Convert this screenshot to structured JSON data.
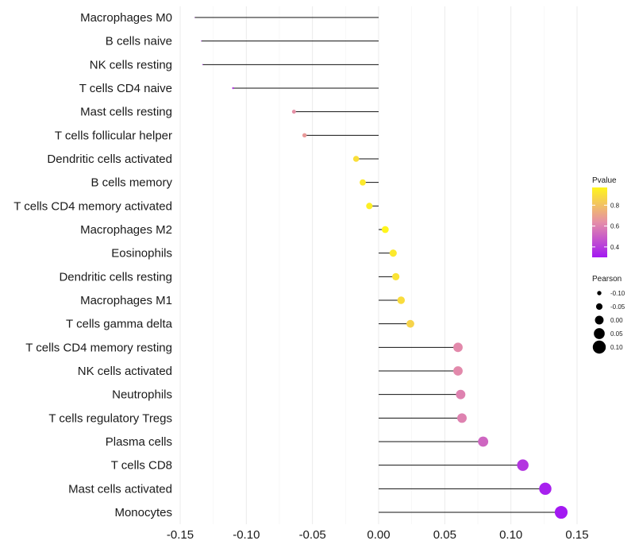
{
  "chart_data": {
    "type": "lollipop",
    "title": "",
    "xlabel": "",
    "ylabel": "",
    "xlim": [
      -0.15,
      0.15
    ],
    "xticks": [
      -0.15,
      -0.1,
      -0.05,
      0.0,
      0.05,
      0.1,
      0.15
    ],
    "xtick_labels": [
      "-0.15",
      "-0.10",
      "-0.05",
      "0.00",
      "0.05",
      "0.10",
      "0.15"
    ],
    "grid": "vertical",
    "categories": [
      "Macrophages M0",
      "B cells naive",
      "NK cells resting",
      "T cells CD4 naive",
      "Mast cells resting",
      "T cells follicular helper",
      "Dendritic cells activated",
      "B cells memory",
      "T cells CD4 memory activated",
      "Macrophages M2",
      "Eosinophils",
      "Dendritic cells resting",
      "Macrophages M1",
      "T cells gamma delta",
      "T cells CD4 memory resting",
      "NK cells activated",
      "Neutrophils",
      "T cells regulatory  Tregs ",
      "Plasma cells",
      "T cells CD8",
      "Mast cells activated",
      "Monocytes"
    ],
    "pearson": [
      -0.139,
      -0.134,
      -0.133,
      -0.11,
      -0.064,
      -0.056,
      -0.017,
      -0.012,
      -0.007,
      0.005,
      0.011,
      0.013,
      0.017,
      0.024,
      0.06,
      0.06,
      0.062,
      0.063,
      0.079,
      0.109,
      0.126,
      0.138
    ],
    "pvalue": [
      0.33,
      0.34,
      0.34,
      0.38,
      0.64,
      0.67,
      0.9,
      0.93,
      0.95,
      0.97,
      0.93,
      0.91,
      0.89,
      0.86,
      0.62,
      0.62,
      0.6,
      0.6,
      0.52,
      0.38,
      0.32,
      0.3
    ],
    "legend_color": {
      "title": "Pvalue",
      "ticks": [
        0.4,
        0.6,
        0.8
      ],
      "tick_labels": [
        "0.4",
        "0.6",
        "0.8"
      ],
      "range": [
        0.3,
        0.97
      ],
      "colors": [
        "#a319f2",
        "#e58ea8",
        "#fff51c"
      ],
      "position": "right"
    },
    "legend_size": {
      "title": "Pearson",
      "values": [
        -0.1,
        -0.05,
        0.0,
        0.05,
        0.1
      ],
      "labels": [
        "-0.10",
        "-0.05",
        "0.00",
        "0.05",
        "0.10"
      ],
      "position": "right"
    }
  }
}
